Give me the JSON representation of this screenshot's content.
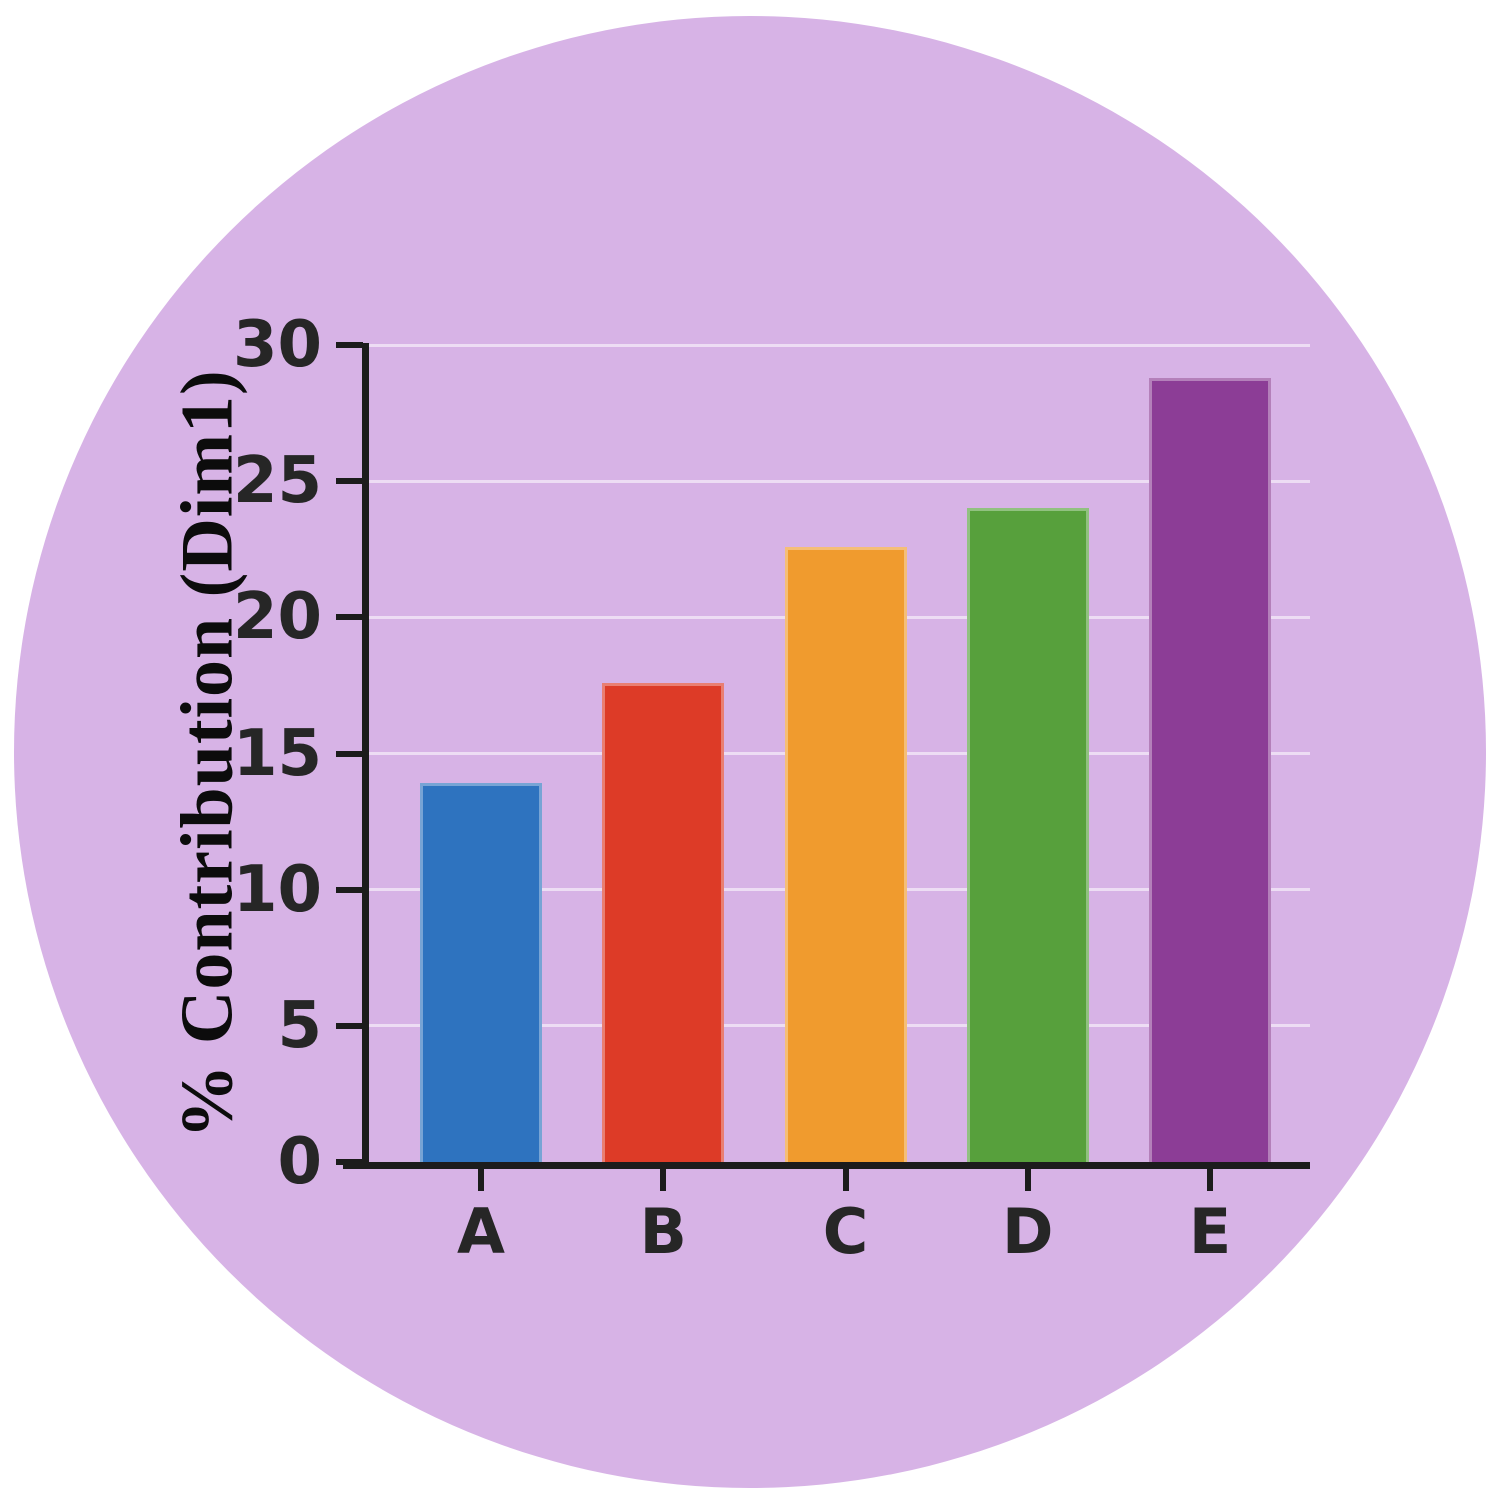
{
  "chart_data": {
    "type": "bar",
    "categories": [
      "A",
      "B",
      "C",
      "D",
      "E"
    ],
    "values": [
      13.9,
      17.6,
      22.6,
      24.0,
      28.8
    ],
    "bar_colors": [
      "#2e73bf",
      "#dd3b27",
      "#f09b2e",
      "#57a03c",
      "#8c3d96"
    ],
    "title": "",
    "xlabel": "",
    "ylabel": "% Contribution (Dim1)",
    "ylim": [
      0,
      30
    ],
    "yticks": [
      0,
      5,
      10,
      15,
      20,
      25,
      30
    ],
    "grid": "horizontal faint white lines at each ytick",
    "legend": "none"
  },
  "colors": {
    "background_circle": "#d7b3e6",
    "page_background": "#ffffff",
    "axis": "#1c1c1c",
    "tick_label": "#262626",
    "gridline": "rgba(255,255,255,0.55)"
  }
}
